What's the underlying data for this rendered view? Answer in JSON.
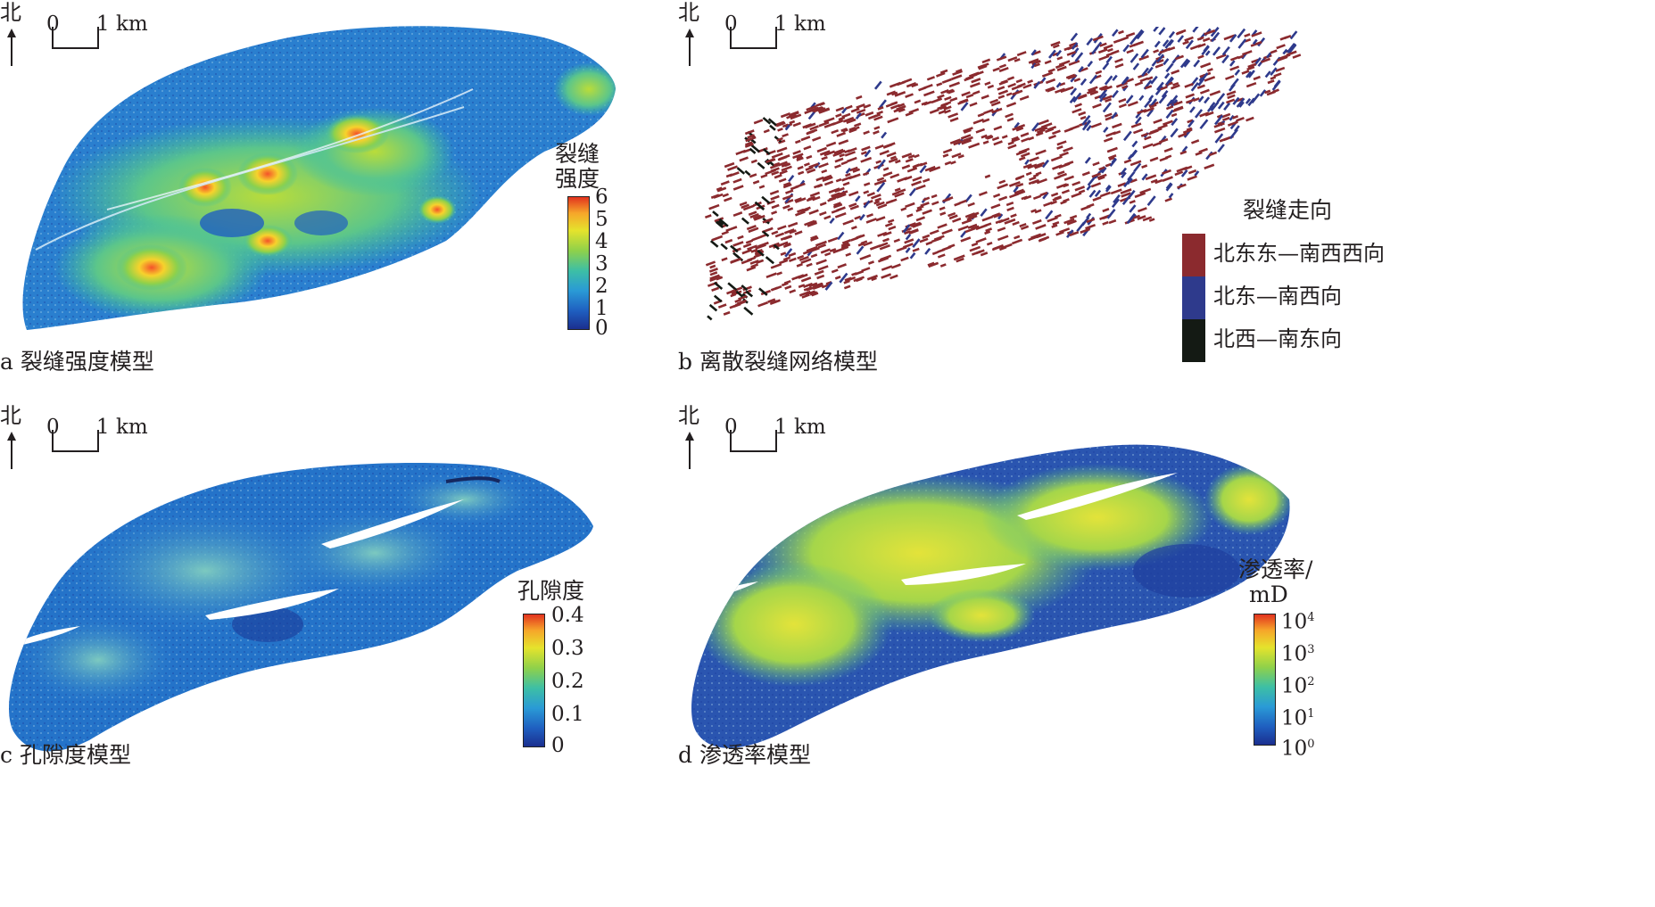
{
  "north_label": "北",
  "scale_bar": {
    "start": "0",
    "end": "1 km"
  },
  "panels": [
    {
      "id": "a",
      "caption": "a 裂缝强度模型",
      "colorbar": {
        "title_lines": [
          "裂缝",
          "强度"
        ],
        "ticks": [
          "6",
          "5",
          "4",
          "3",
          "2",
          "1",
          "0"
        ],
        "colormap": "jet"
      }
    },
    {
      "id": "b",
      "caption": "b 离散裂缝网络模型",
      "legend": {
        "title": "裂缝走向",
        "items": [
          {
            "label": "北东东—南西西向",
            "color": "#8b2a2e"
          },
          {
            "label": "北东—南西向",
            "color": "#2e3a8c"
          },
          {
            "label": "北西—南东向",
            "color": "#141a14"
          }
        ]
      }
    },
    {
      "id": "c",
      "caption": "c 孔隙度模型",
      "colorbar": {
        "title_lines": [
          "孔隙度"
        ],
        "ticks": [
          "0.4",
          "0.3",
          "0.2",
          "0.1",
          "0"
        ],
        "colormap": "jet"
      }
    },
    {
      "id": "d",
      "caption": "d 渗透率模型",
      "colorbar": {
        "title_lines": [
          "渗透率/",
          "mD"
        ],
        "ticks": [
          {
            "base": "10",
            "exp": "4"
          },
          {
            "base": "10",
            "exp": "3"
          },
          {
            "base": "10",
            "exp": "2"
          },
          {
            "base": "10",
            "exp": "1"
          },
          {
            "base": "10",
            "exp": "0"
          }
        ],
        "colormap": "jet",
        "scale": "log"
      }
    }
  ]
}
